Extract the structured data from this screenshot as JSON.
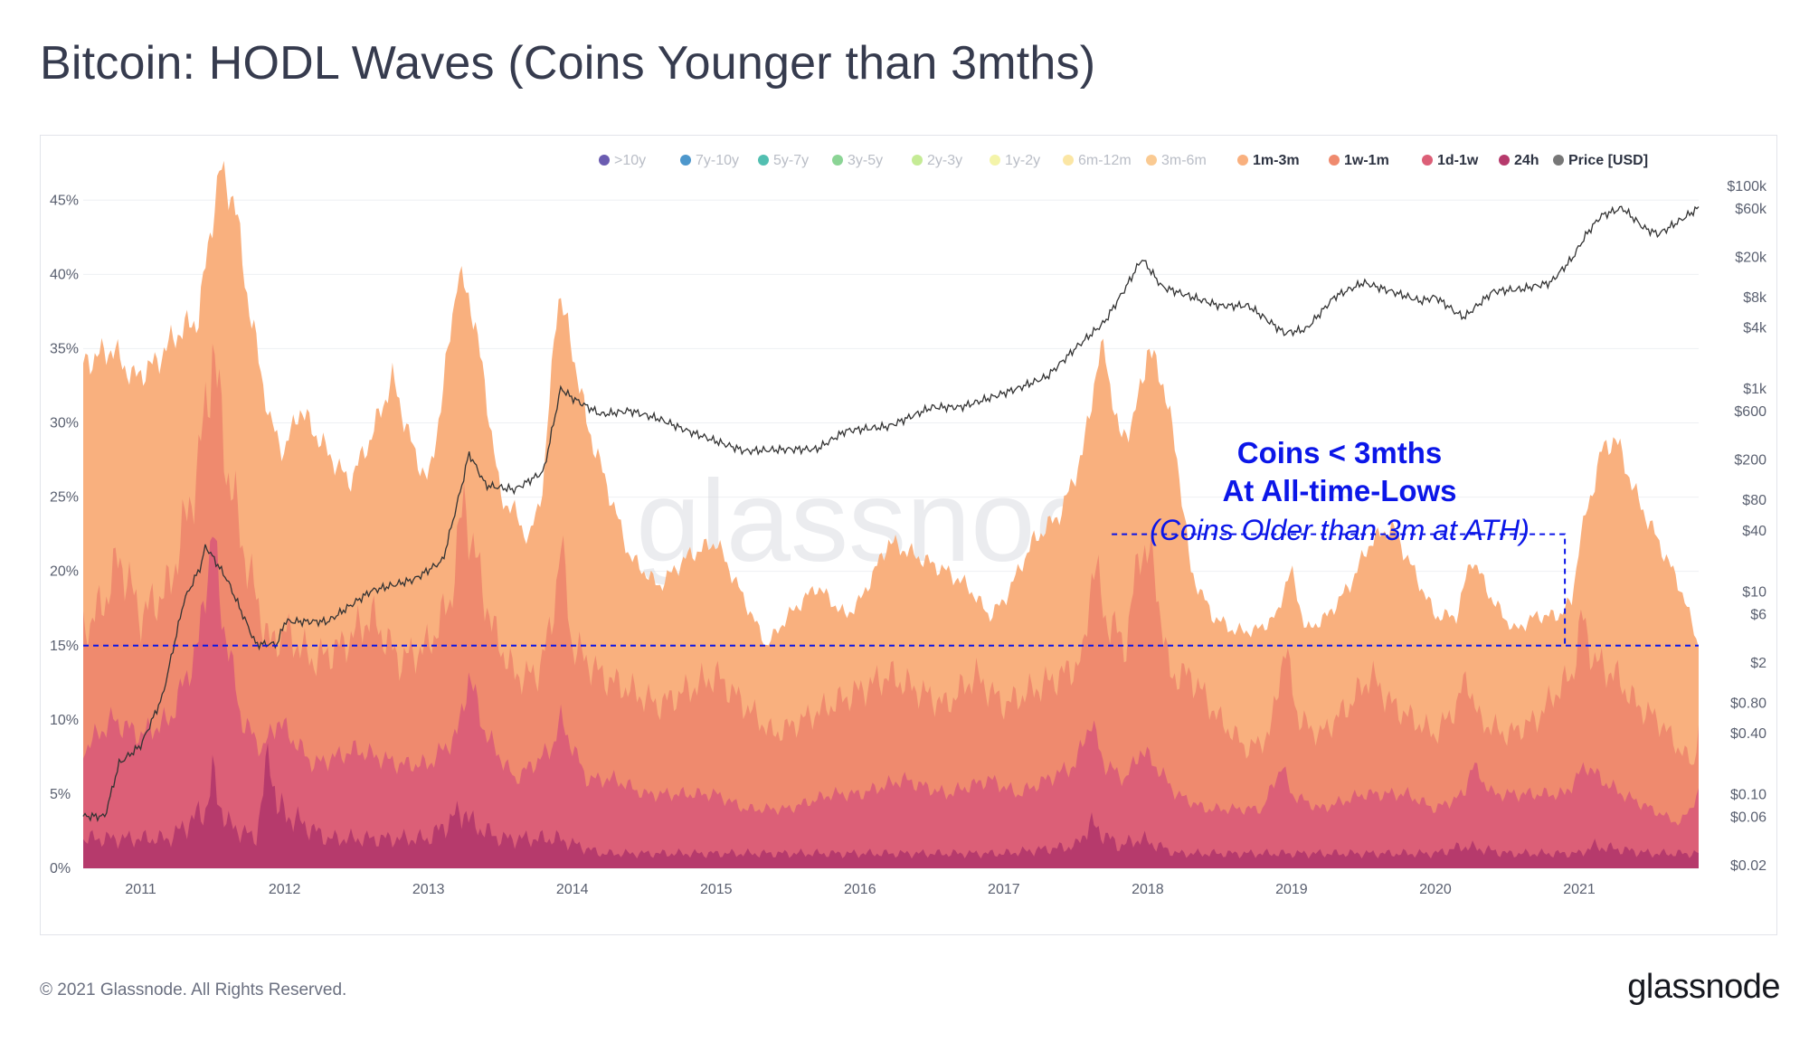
{
  "title": "Bitcoin: HODL Waves (Coins Younger than 3mths)",
  "footer": {
    "copyright": "© 2021 Glassnode. All Rights Reserved.",
    "brand": "glassnode"
  },
  "watermark": "glassnode",
  "colors": {
    "band_3m_6m": "#fac486",
    "band_1m_3m": "#f9b07e",
    "band_1w_1m": "#ef8a6e",
    "band_1d_1w": "#dc5f77",
    "band_24h": "#b63a6c",
    "price_line": "#333333",
    "annotation": "#0b16e8",
    "grid": "#eef0f3"
  },
  "chart_data": {
    "type": "area",
    "title": "Bitcoin: HODL Waves (Coins Younger than 3mths)",
    "stacking": "cumulative",
    "x_start": 2010.6,
    "x_end": 2021.83,
    "xlim": [
      2010.6,
      2021.83
    ],
    "ylim": [
      0,
      48
    ],
    "y_left_ticks": [
      "0%",
      "5%",
      "10%",
      "15%",
      "20%",
      "25%",
      "30%",
      "35%",
      "40%",
      "45%"
    ],
    "y_right_scale": "log",
    "y_right_ticks": [
      "$0.02",
      "$0.06",
      "$0.10",
      "$0.40",
      "$0.80",
      "$2",
      "$6",
      "$10",
      "$40",
      "$80",
      "$200",
      "$600",
      "$1k",
      "$4k",
      "$8k",
      "$20k",
      "$60k",
      "$100k"
    ],
    "y_right_tick_values": [
      0.02,
      0.06,
      0.1,
      0.4,
      0.8,
      2,
      6,
      10,
      40,
      80,
      200,
      600,
      1000,
      4000,
      8000,
      20000,
      60000,
      100000
    ],
    "x_ticks": [
      "2011",
      "2012",
      "2013",
      "2014",
      "2015",
      "2016",
      "2017",
      "2018",
      "2019",
      "2020",
      "2021"
    ],
    "legend": [
      {
        "label": ">10y",
        "color": "#5b4aa8",
        "active": false
      },
      {
        "label": "7y-10y",
        "color": "#3a8cc7",
        "active": false
      },
      {
        "label": "5y-7y",
        "color": "#3fb8a8",
        "active": false
      },
      {
        "label": "3y-5y",
        "color": "#7ecf8a",
        "active": false
      },
      {
        "label": "2y-3y",
        "color": "#bfe98a",
        "active": false
      },
      {
        "label": "1y-2y",
        "color": "#f3f3a0",
        "active": false
      },
      {
        "label": "6m-12m",
        "color": "#fbe39a",
        "active": false
      },
      {
        "label": "3m-6m",
        "color": "#fac486",
        "active": false
      },
      {
        "label": "1m-3m",
        "color": "#f9b07e",
        "active": true
      },
      {
        "label": "1w-1m",
        "color": "#ef8a6e",
        "active": true
      },
      {
        "label": "1d-1w",
        "color": "#dc5f77",
        "active": true
      },
      {
        "label": "24h",
        "color": "#b63a6c",
        "active": true
      },
      {
        "label": "Price [USD]",
        "color": "#777777",
        "active": true
      }
    ],
    "series": [
      {
        "name": "1m-3m (cumulative %)",
        "x": [
          2010.6,
          2010.8,
          2010.95,
          2011.1,
          2011.25,
          2011.4,
          2011.5,
          2011.55,
          2011.65,
          2011.75,
          2011.9,
          2012.0,
          2012.1,
          2012.3,
          2012.45,
          2012.6,
          2012.75,
          2012.9,
          2013.0,
          2013.1,
          2013.2,
          2013.3,
          2013.4,
          2013.5,
          2013.6,
          2013.7,
          2013.8,
          2013.9,
          2014.0,
          2014.1,
          2014.2,
          2014.4,
          2014.6,
          2014.8,
          2015.0,
          2015.2,
          2015.35,
          2015.5,
          2015.7,
          2015.9,
          2016.0,
          2016.2,
          2016.4,
          2016.6,
          2016.75,
          2016.9,
          2017.0,
          2017.2,
          2017.4,
          2017.55,
          2017.65,
          2017.7,
          2017.8,
          2017.9,
          2018.0,
          2018.1,
          2018.2,
          2018.3,
          2018.45,
          2018.6,
          2018.75,
          2018.9,
          2018.95,
          2019.0,
          2019.1,
          2019.25,
          2019.4,
          2019.55,
          2019.7,
          2019.85,
          2020.0,
          2020.15,
          2020.25,
          2020.4,
          2020.55,
          2020.7,
          2020.85,
          2020.95,
          2021.0,
          2021.08,
          2021.15,
          2021.25,
          2021.4,
          2021.55,
          2021.7,
          2021.8,
          2021.83
        ],
        "values": [
          34,
          35,
          33,
          34,
          36,
          37,
          44,
          47,
          45,
          38,
          30,
          28,
          31,
          28,
          26,
          29,
          33,
          28,
          26,
          32,
          40,
          38,
          32,
          25,
          24,
          22,
          26,
          39,
          35,
          30,
          27,
          21,
          19,
          21,
          22,
          18,
          15,
          17,
          19,
          17,
          18,
          22,
          21,
          20,
          19,
          17,
          18,
          22,
          24,
          28,
          34,
          35,
          29,
          30,
          35,
          33,
          28,
          20,
          17,
          16,
          16,
          17,
          19,
          20,
          16,
          17,
          19,
          22,
          23,
          20,
          17,
          17,
          21,
          18,
          16,
          17,
          17,
          18,
          22,
          25,
          28,
          29,
          25,
          22,
          19,
          16,
          15
        ]
      },
      {
        "name": "1w-1m (cumulative %)",
        "x": [
          2010.6,
          2010.75,
          2010.85,
          2011.0,
          2011.2,
          2011.4,
          2011.5,
          2011.6,
          2011.75,
          2011.9,
          2012.0,
          2012.2,
          2012.4,
          2012.6,
          2012.8,
          2013.0,
          2013.15,
          2013.25,
          2013.3,
          2013.45,
          2013.6,
          2013.75,
          2013.85,
          2013.92,
          2014.0,
          2014.2,
          2014.4,
          2014.6,
          2014.8,
          2015.0,
          2015.2,
          2015.4,
          2015.6,
          2015.8,
          2016.0,
          2016.2,
          2016.4,
          2016.6,
          2016.8,
          2017.0,
          2017.2,
          2017.4,
          2017.55,
          2017.62,
          2017.7,
          2017.85,
          2017.95,
          2018.05,
          2018.15,
          2018.3,
          2018.5,
          2018.7,
          2018.85,
          2018.95,
          2019.05,
          2019.2,
          2019.4,
          2019.55,
          2019.7,
          2019.85,
          2020.0,
          2020.15,
          2020.22,
          2020.3,
          2020.5,
          2020.7,
          2020.85,
          2020.95,
          2021.02,
          2021.1,
          2021.25,
          2021.4,
          2021.55,
          2021.7,
          2021.8,
          2021.83
        ],
        "values": [
          16,
          18,
          21,
          17,
          19,
          27,
          35,
          27,
          20,
          15,
          16,
          14,
          15,
          17,
          14,
          15,
          18,
          25,
          22,
          16,
          13,
          13,
          16,
          22,
          15,
          13,
          12,
          11,
          12,
          13,
          11,
          9,
          10,
          11,
          12,
          13,
          12,
          11,
          13,
          11,
          12,
          13,
          14,
          21,
          17,
          15,
          22,
          20,
          13,
          13,
          10,
          8,
          9,
          15,
          10,
          9,
          11,
          13,
          11,
          10,
          9,
          11,
          13,
          10,
          9,
          10,
          12,
          13,
          17,
          14,
          13,
          11,
          10,
          8,
          7,
          10
        ]
      },
      {
        "name": "1d-1w (cumulative %)",
        "x": [
          2010.6,
          2010.8,
          2011.0,
          2011.2,
          2011.4,
          2011.5,
          2011.55,
          2011.7,
          2011.85,
          2011.95,
          2012.2,
          2012.5,
          2012.8,
          2013.0,
          2013.2,
          2013.28,
          2013.4,
          2013.6,
          2013.85,
          2013.92,
          2014.1,
          2014.3,
          2014.5,
          2014.8,
          2015.0,
          2015.2,
          2015.5,
          2015.8,
          2016.0,
          2016.3,
          2016.6,
          2016.9,
          2017.1,
          2017.3,
          2017.5,
          2017.6,
          2017.7,
          2017.85,
          2017.95,
          2018.05,
          2018.2,
          2018.4,
          2018.6,
          2018.8,
          2018.93,
          2019.0,
          2019.2,
          2019.5,
          2019.8,
          2020.0,
          2020.2,
          2020.25,
          2020.4,
          2020.7,
          2020.9,
          2021.05,
          2021.15,
          2021.3,
          2021.5,
          2021.7,
          2021.83
        ],
        "values": [
          8,
          10,
          9,
          10,
          15,
          23,
          18,
          10,
          8,
          10,
          7,
          8,
          7,
          7,
          9,
          13,
          9,
          6,
          8,
          10,
          6,
          6,
          5,
          5,
          5,
          4,
          4,
          5,
          5,
          6,
          5,
          6,
          5,
          6,
          7,
          10,
          7,
          6,
          8,
          7,
          5,
          4,
          4,
          4,
          7,
          5,
          4,
          5,
          5,
          4,
          5,
          7,
          5,
          5,
          5,
          7,
          6,
          5,
          4,
          3,
          5
        ]
      },
      {
        "name": "24h (%)",
        "x": [
          2010.6,
          2010.9,
          2011.2,
          2011.45,
          2011.5,
          2011.6,
          2011.8,
          2011.9,
          2011.95,
          2012.3,
          2012.7,
          2013.0,
          2013.25,
          2013.3,
          2013.5,
          2013.9,
          2014.2,
          2014.6,
          2015.0,
          2015.5,
          2016.0,
          2016.5,
          2017.0,
          2017.5,
          2017.6,
          2017.8,
          2017.95,
          2018.2,
          2018.6,
          2019.0,
          2019.5,
          2020.0,
          2020.2,
          2020.5,
          2021.0,
          2021.1,
          2021.5,
          2021.83
        ],
        "values": [
          2,
          2,
          2,
          4,
          6,
          3,
          2,
          8,
          4,
          2,
          2,
          2,
          4,
          3,
          2,
          2,
          1,
          1,
          1,
          1,
          1,
          1,
          1,
          1.5,
          3,
          1.5,
          2,
          1,
          1,
          1,
          1,
          1,
          1.5,
          1,
          1,
          1.5,
          1,
          1
        ]
      },
      {
        "name": "Price [USD]",
        "axis": "right",
        "x": [
          2010.6,
          2010.75,
          2010.85,
          2011.0,
          2011.15,
          2011.3,
          2011.42,
          2011.45,
          2011.6,
          2011.8,
          2011.95,
          2012.0,
          2012.3,
          2012.6,
          2012.9,
          2013.1,
          2013.25,
          2013.28,
          2013.4,
          2013.6,
          2013.8,
          2013.92,
          2014.0,
          2014.2,
          2014.4,
          2014.6,
          2014.8,
          2015.0,
          2015.2,
          2015.5,
          2015.7,
          2015.9,
          2016.2,
          2016.5,
          2016.7,
          2016.9,
          2017.1,
          2017.3,
          2017.5,
          2017.7,
          2017.85,
          2017.96,
          2018.1,
          2018.3,
          2018.5,
          2018.7,
          2018.85,
          2018.95,
          2019.1,
          2019.3,
          2019.5,
          2019.75,
          2019.9,
          2020.0,
          2020.15,
          2020.2,
          2020.4,
          2020.6,
          2020.8,
          2020.95,
          2021.05,
          2021.15,
          2021.3,
          2021.45,
          2021.55,
          2021.7,
          2021.83
        ],
        "values": [
          0.06,
          0.06,
          0.2,
          0.3,
          0.9,
          8,
          18,
          28,
          13,
          3,
          3,
          5,
          5,
          10,
          13,
          20,
          140,
          230,
          110,
          100,
          150,
          1000,
          800,
          550,
          600,
          500,
          380,
          300,
          240,
          250,
          250,
          380,
          420,
          650,
          650,
          800,
          1000,
          1300,
          2500,
          4500,
          10000,
          19000,
          10000,
          8000,
          6500,
          6500,
          4500,
          3500,
          3800,
          8000,
          11000,
          8500,
          7200,
          8000,
          5500,
          5000,
          9000,
          9500,
          11000,
          19000,
          33000,
          50000,
          60000,
          38000,
          33000,
          45000,
          60000
        ]
      }
    ],
    "reference_line": {
      "value": 15,
      "label": "Coins < 3mths At All-time-Lows",
      "style": "dashed"
    },
    "callout_box": {
      "x_range": [
        2017.75,
        2020.9
      ],
      "y_range": [
        15,
        22.5
      ],
      "style": "dashed"
    },
    "annotations": [
      "Coins < 3mths",
      "At All-time-Lows",
      "(Coins Older than 3m at ATH)"
    ]
  }
}
